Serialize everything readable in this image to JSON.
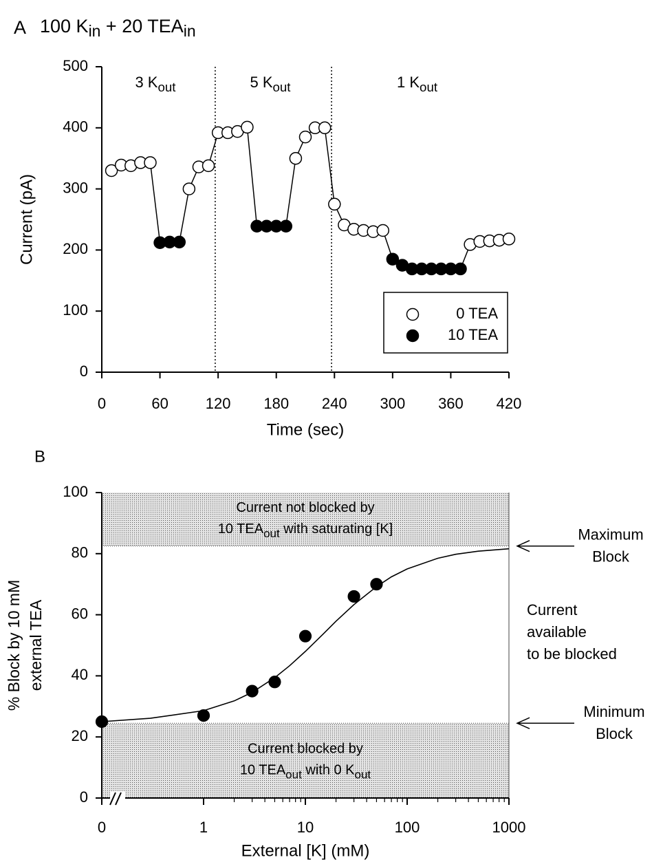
{
  "chart_data": [
    {
      "type": "line",
      "panel": "A",
      "title": [
        "100 K",
        "in",
        " + 20 TEA",
        "in"
      ],
      "x_label": "Time (sec)",
      "y_label": "Current (pA)",
      "x": [
        10,
        20,
        30,
        40,
        50,
        60,
        70,
        80,
        90,
        100,
        110,
        120,
        130,
        140,
        150,
        160,
        170,
        180,
        190,
        200,
        210,
        220,
        230,
        240,
        250,
        260,
        270,
        280,
        290,
        300,
        310,
        320,
        330,
        340,
        350,
        360,
        370,
        380,
        390,
        400,
        410,
        420
      ],
      "series": [
        {
          "name": "0 TEA",
          "color": "#ffffff",
          "values": [
            330,
            339,
            338,
            343,
            343,
            null,
            null,
            null,
            300,
            336,
            338,
            392,
            392,
            394,
            401,
            null,
            null,
            null,
            null,
            350,
            385,
            400,
            400,
            275,
            241,
            234,
            232,
            230,
            232,
            null,
            null,
            null,
            null,
            null,
            null,
            null,
            null,
            209,
            214,
            215,
            216,
            218
          ]
        },
        {
          "name": "10 TEA",
          "color": "#000000",
          "values": [
            null,
            null,
            null,
            null,
            null,
            212,
            213,
            213,
            null,
            null,
            null,
            null,
            null,
            null,
            null,
            239,
            239,
            239,
            239,
            null,
            null,
            null,
            null,
            null,
            null,
            null,
            null,
            null,
            null,
            185,
            175,
            169,
            169,
            169,
            169,
            169,
            169,
            null,
            null,
            null,
            null,
            null
          ]
        }
      ],
      "xlim": [
        0,
        420
      ],
      "xticks": [
        0,
        60,
        120,
        180,
        240,
        300,
        360,
        420
      ],
      "ylim": [
        0,
        500
      ],
      "yticks": [
        0,
        100,
        200,
        300,
        400,
        500
      ],
      "boundaries": [
        117,
        237
      ],
      "annotations": [
        [
          "3 K",
          "out"
        ],
        [
          "5 K",
          "out"
        ],
        [
          "1 K",
          "out"
        ]
      ],
      "legend": "lower right"
    },
    {
      "type": "scatter",
      "panel": "B",
      "x_label": "External [K] (mM)",
      "y_label": [
        "% Block by 10 mM",
        "external TEA"
      ],
      "x": [
        0,
        1,
        3,
        5,
        10,
        30,
        50
      ],
      "values": [
        25,
        27,
        35,
        38,
        53,
        66,
        70
      ],
      "color": "#000000",
      "fit": {
        "x": [
          0,
          0.3,
          1,
          2,
          3,
          5,
          7,
          10,
          15,
          20,
          30,
          50,
          70,
          100,
          200,
          300,
          500,
          1000
        ],
        "values": [
          25,
          26.1,
          28.6,
          31.8,
          34.6,
          39.4,
          43.3,
          48,
          53.75,
          57.9,
          63.3,
          69.2,
          72.4,
          75,
          78.5,
          79.8,
          80.8,
          81.6
        ]
      },
      "xscale": "log",
      "x_break": true,
      "xlim": [
        0,
        1000
      ],
      "xticks": [
        0,
        1,
        10,
        100,
        1000
      ],
      "xminorticks": [
        2,
        3,
        4,
        5,
        6,
        7,
        8,
        9,
        20,
        30,
        40,
        50,
        60,
        70,
        80,
        90,
        200,
        300,
        400,
        500,
        600,
        700,
        800,
        900
      ],
      "ylim": [
        0,
        100
      ],
      "yticks": [
        0,
        20,
        40,
        60,
        80,
        100
      ],
      "bands": [
        {
          "from": 82.5,
          "to": 100,
          "label": [
            [
              "Current not blocked by"
            ],
            [
              "10 TEA",
              "out",
              " with saturating [K]"
            ]
          ]
        },
        {
          "from": 0,
          "to": 24.5,
          "label": [
            [
              "Current blocked by"
            ],
            [
              "10 TEA",
              "out",
              " with 0 K",
              "out"
            ]
          ]
        }
      ],
      "annotations": {
        "maximum": [
          "Maximum",
          "Block"
        ],
        "available": [
          "Current",
          "available",
          "to be blocked"
        ],
        "minimum": [
          "Minimum",
          "Block"
        ]
      }
    }
  ]
}
